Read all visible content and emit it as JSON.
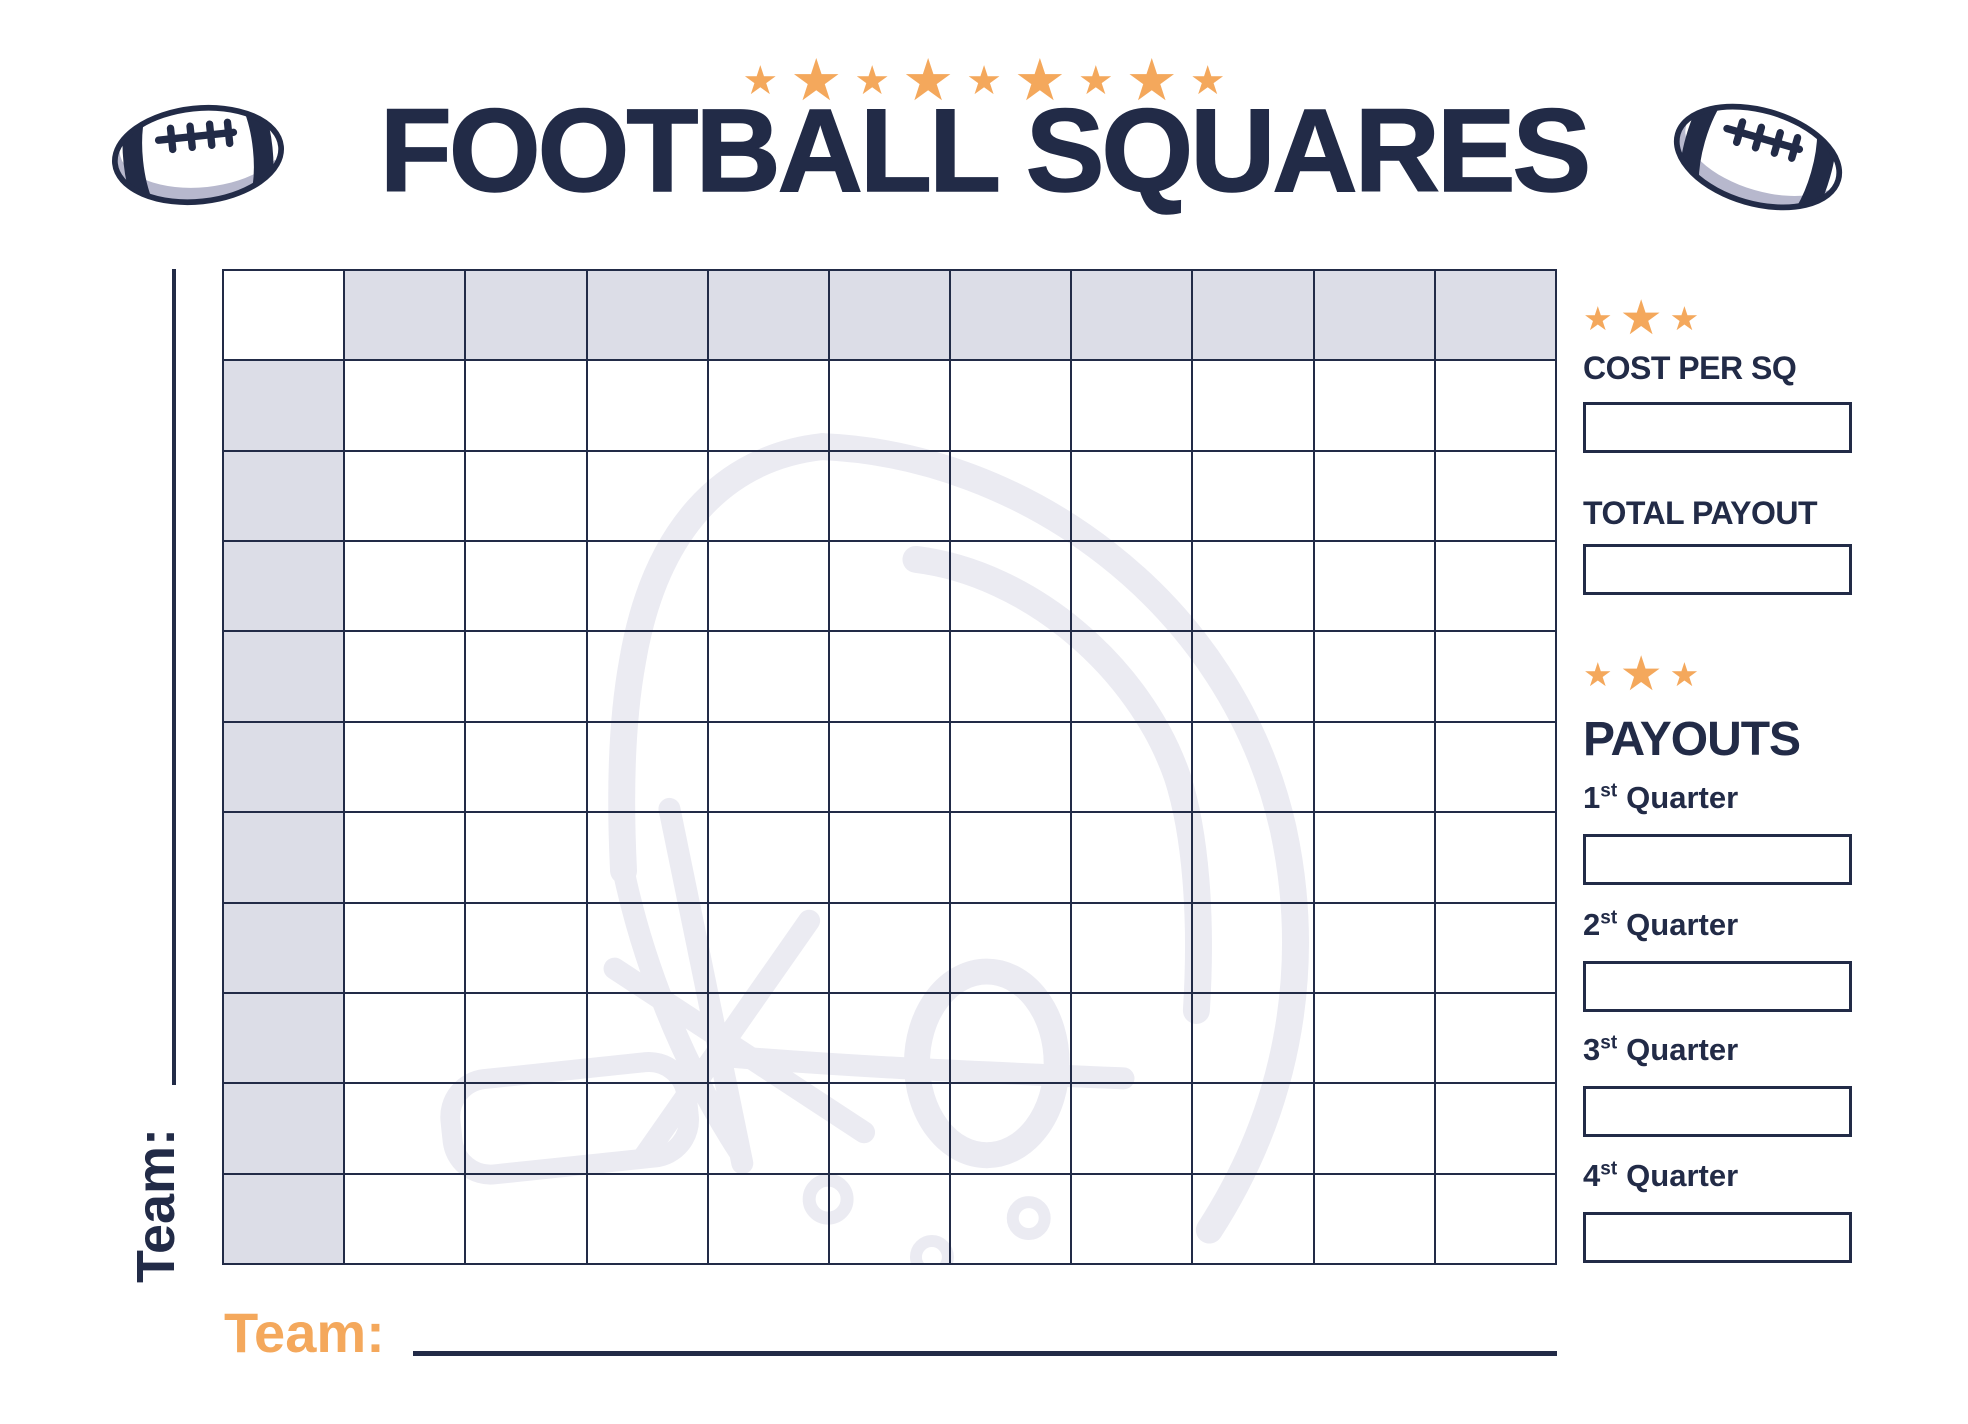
{
  "header": {
    "stars": {
      "icon": "star-icon",
      "char": "★",
      "count": 9
    },
    "title": "FOOTBALL SQUARES"
  },
  "grid": {
    "rows": 11,
    "cols": 11
  },
  "side_team": {
    "label": "Team:"
  },
  "bottom_team": {
    "label": "Team:"
  },
  "sidebar": {
    "cost": {
      "stars": {
        "icon": "star-icon",
        "char": "★",
        "count": 3
      },
      "label": "COST PER SQ",
      "value": ""
    },
    "total": {
      "label": "TOTAL PAYOUT",
      "value": ""
    },
    "payouts": {
      "stars": {
        "icon": "star-icon",
        "char": "★",
        "count": 3
      },
      "title": "PAYOUTS",
      "quarters": [
        {
          "num": "1",
          "suffix": "st",
          "word": "Quarter",
          "value": ""
        },
        {
          "num": "2",
          "suffix": "st",
          "word": "Quarter",
          "value": ""
        },
        {
          "num": "3",
          "suffix": "st",
          "word": "Quarter",
          "value": ""
        },
        {
          "num": "4",
          "suffix": "st",
          "word": "Quarter",
          "value": ""
        }
      ]
    }
  },
  "colors": {
    "navy": "#222b47",
    "orange": "#f4a85c",
    "shade": "#dcdde7",
    "watermark": "#ebebf2",
    "fbshadow": "#b7b8cd"
  }
}
